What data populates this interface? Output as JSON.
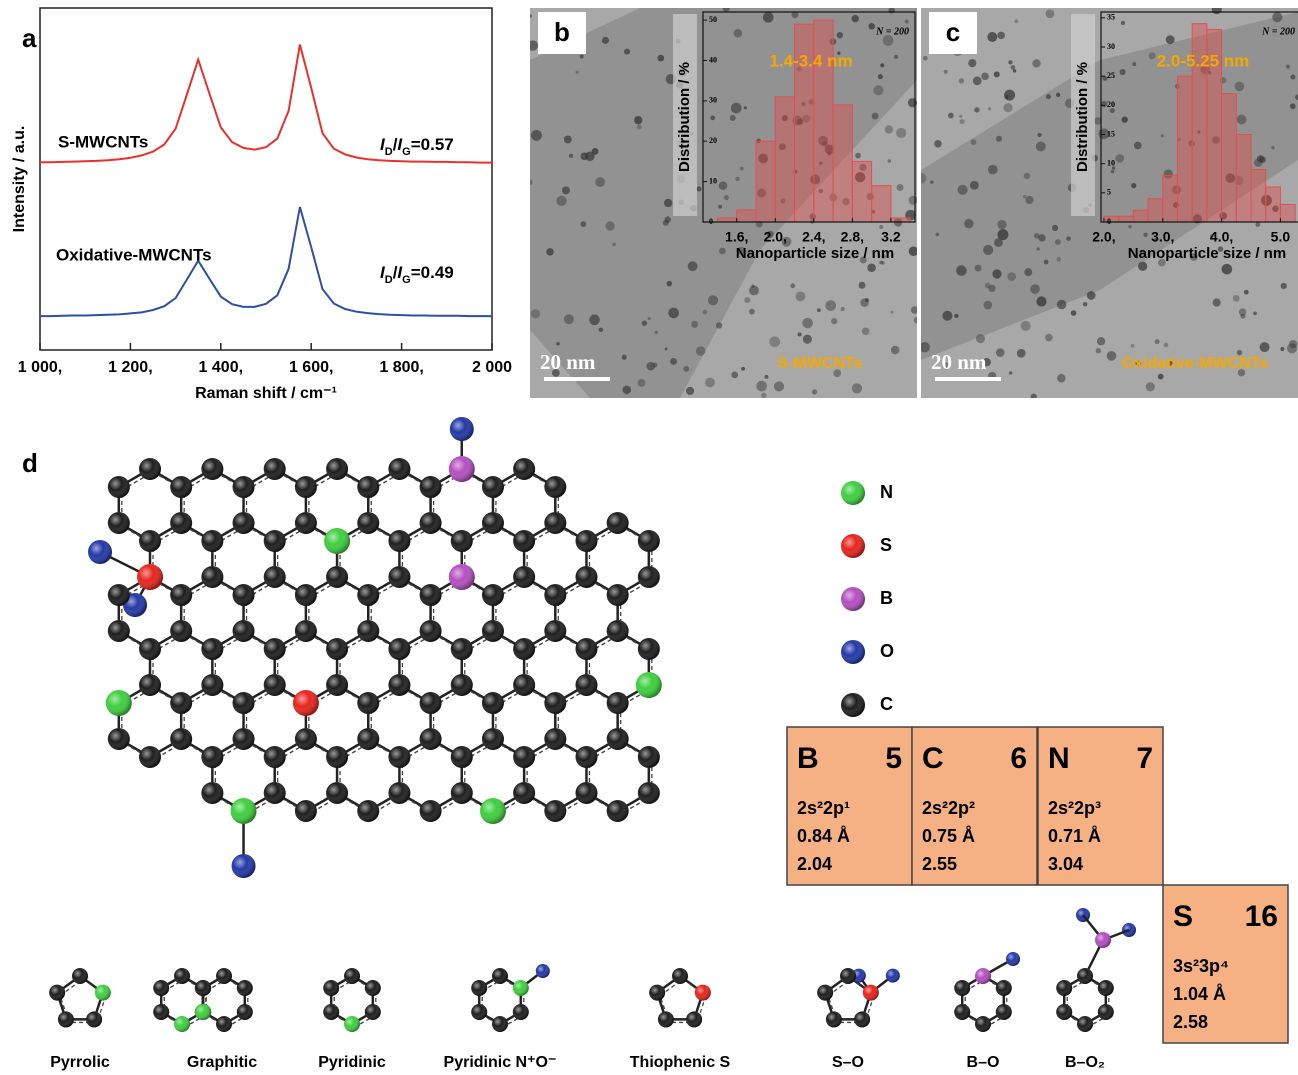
{
  "chart_data": [
    {
      "type": "line",
      "panel_label": "a",
      "xlabel": "Raman shift / cm⁻¹",
      "ylabel": "Intensity / a.u.",
      "x": [
        1000,
        1025,
        1050,
        1075,
        1100,
        1125,
        1150,
        1175,
        1200,
        1225,
        1250,
        1275,
        1300,
        1325,
        1350,
        1375,
        1400,
        1425,
        1450,
        1475,
        1500,
        1525,
        1550,
        1575,
        1600,
        1625,
        1650,
        1675,
        1700,
        1725,
        1750,
        1775,
        1800,
        1825,
        1850,
        1875,
        1900,
        1925,
        1950,
        1975,
        2000
      ],
      "xlim": [
        1000,
        2000
      ],
      "xticks": [
        {
          "value": 1000,
          "label": "1 000,"
        },
        {
          "value": 1200,
          "label": "1 200,"
        },
        {
          "value": 1400,
          "label": "1 400,"
        },
        {
          "value": 1600,
          "label": "1 600,"
        },
        {
          "value": 1800,
          "label": "1 800,"
        },
        {
          "value": 2000,
          "label": "2 000"
        }
      ],
      "ylim": [
        0,
        10
      ],
      "series": [
        {
          "name": "S-MWCNTs",
          "color": "#e8312f",
          "ratio_label": [
            "I",
            "D",
            "/",
            "I",
            "G",
            "=0.57"
          ],
          "values": [
            5.49,
            5.49,
            5.5,
            5.51,
            5.52,
            5.53,
            5.55,
            5.58,
            5.62,
            5.69,
            5.8,
            6.01,
            6.47,
            7.47,
            8.49,
            7.49,
            6.51,
            6.08,
            5.91,
            5.86,
            5.93,
            6.18,
            6.99,
            8.93,
            7.67,
            6.34,
            5.89,
            5.72,
            5.63,
            5.58,
            5.55,
            5.53,
            5.52,
            5.51,
            5.51,
            5.5,
            5.5,
            5.49,
            5.49,
            5.48,
            5.48
          ]
        },
        {
          "name": "Oxidative-MWCNTs",
          "color": "#2e4fa3",
          "ratio_label": [
            "I",
            "D",
            "/",
            "I",
            "G",
            "=0.49"
          ],
          "values": [
            0.99,
            0.99,
            1.0,
            1.01,
            1.01,
            1.02,
            1.03,
            1.04,
            1.07,
            1.1,
            1.17,
            1.28,
            1.52,
            2.06,
            2.61,
            2.08,
            1.56,
            1.34,
            1.26,
            1.26,
            1.35,
            1.6,
            2.37,
            4.18,
            3.01,
            1.78,
            1.36,
            1.2,
            1.12,
            1.08,
            1.05,
            1.03,
            1.02,
            1.01,
            1.01,
            1.0,
            1.0,
            1.0,
            0.99,
            0.99,
            0.99
          ]
        }
      ]
    },
    {
      "type": "histogram",
      "panel_label": "b",
      "sample_label": "S-MWCNTs",
      "scale_bar": "20 nm",
      "ylabel": "Distribution / %",
      "xlabel": "Nanoparticle size / nm",
      "annotation": "N = 200",
      "range_label": "1.4-3.4 nm",
      "color": "#e05050",
      "bins": [
        1.4,
        1.6,
        1.8,
        2.0,
        2.2,
        2.4,
        2.6,
        2.8,
        3.0,
        3.2,
        3.4
      ],
      "values": [
        1,
        3,
        20,
        31,
        49,
        50,
        29,
        15,
        9,
        1
      ],
      "xlim": [
        1.25,
        3.45
      ],
      "ylim": [
        0,
        52
      ],
      "xticks": [
        {
          "value": 1.6,
          "label": "1.6,"
        },
        {
          "value": 2.0,
          "label": "2.0,"
        },
        {
          "value": 2.4,
          "label": "2.4,"
        },
        {
          "value": 2.8,
          "label": "2.8,"
        },
        3.2
      ],
      "yticks": [
        0,
        10,
        20,
        30,
        40,
        50
      ]
    },
    {
      "type": "histogram",
      "panel_label": "c",
      "sample_label": "Oxidative-MWCNTs",
      "scale_bar": "20 nm",
      "ylabel": "Distribution / %",
      "xlabel": "Nanoparticle size / nm",
      "annotation": "N = 200",
      "range_label": "2.0-5.25 nm",
      "color": "#e05050",
      "bins": [
        2.0,
        2.25,
        2.5,
        2.75,
        3.0,
        3.25,
        3.5,
        3.75,
        4.0,
        4.25,
        4.5,
        4.75,
        5.0,
        5.25
      ],
      "values": [
        1,
        1,
        2,
        4,
        8,
        25,
        34,
        33,
        22,
        15,
        9,
        6,
        3
      ],
      "xlim": [
        1.95,
        5.35
      ],
      "ylim": [
        0,
        36
      ],
      "xticks": [
        {
          "value": 2.0,
          "label": "2.0,"
        },
        {
          "value": 3.0,
          "label": "3.0,"
        },
        {
          "value": 4.0,
          "label": "4.0,"
        },
        {
          "value": 5.0,
          "label": "5.0"
        }
      ],
      "yticks": [
        0,
        5,
        10,
        15,
        20,
        25,
        30,
        35
      ]
    }
  ],
  "panel_d": {
    "label": "d",
    "legend": [
      {
        "symbol": "N",
        "color": "#3ecf3e"
      },
      {
        "symbol": "S",
        "color": "#e8241c"
      },
      {
        "symbol": "B",
        "color": "#b44fc0"
      },
      {
        "symbol": "O",
        "color": "#2338a8"
      },
      {
        "symbol": "C",
        "color": "#1e1e1e"
      }
    ],
    "elements": [
      {
        "symbol": "B",
        "number": 5,
        "config": "2s²2p¹",
        "radius": "0.84 Å",
        "electronegativity": 2.04
      },
      {
        "symbol": "C",
        "number": 6,
        "config": "2s²2p²",
        "radius": "0.75 Å",
        "electronegativity": 2.55
      },
      {
        "symbol": "N",
        "number": 7,
        "config": "2s²2p³",
        "radius": "0.71 Å",
        "electronegativity": 3.04
      },
      {
        "symbol": "S",
        "number": 16,
        "config": "3s²3p⁴",
        "radius": "1.04 Å",
        "electronegativity": 2.58
      }
    ],
    "fragments": [
      "Pyrrolic",
      "Graphitic",
      "Pyridinic",
      "Pyridinic N⁺O⁻",
      "Thiophenic S",
      "S–O",
      "B–O",
      "B–O₂"
    ]
  }
}
